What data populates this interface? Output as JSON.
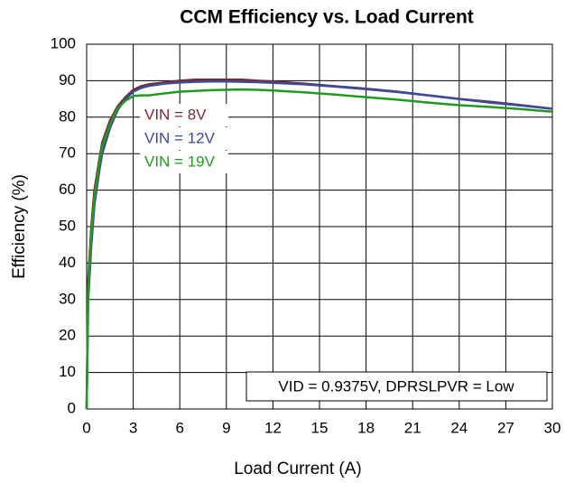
{
  "chart_data": {
    "type": "line",
    "title": "CCM Efficiency vs. Load Current",
    "xlabel": "Load Current  (A)",
    "ylabel": "Efficiency (%)",
    "annotation": "VID = 0.9375V, DPRSLPVR = Low",
    "x": [
      0,
      0.1,
      0.3,
      0.5,
      0.8,
      1,
      1.5,
      2,
      2.5,
      3,
      3.5,
      4,
      5,
      6,
      7,
      8,
      9,
      10,
      11,
      12,
      14,
      16,
      18,
      20,
      22,
      24,
      26,
      28,
      30
    ],
    "series": [
      {
        "name": "VIN = 8V",
        "color": "#7a2a2e",
        "values": [
          0,
          35,
          50,
          60,
          68,
          73,
          79,
          83,
          85.5,
          87.5,
          88.5,
          89,
          89.5,
          90,
          90.3,
          90.3,
          90.3,
          90.3,
          90,
          89.8,
          89.2,
          88.5,
          87.8,
          87,
          86,
          85,
          84.2,
          83.3,
          82.3
        ]
      },
      {
        "name": "VIN = 12V",
        "color": "#3c4a9c",
        "values": [
          0,
          30,
          45,
          56,
          65,
          70,
          77,
          82,
          85,
          87,
          88,
          88.6,
          89.2,
          89.5,
          89.7,
          89.8,
          89.8,
          89.7,
          89.6,
          89.4,
          89,
          88.4,
          87.7,
          86.9,
          86,
          85,
          84,
          83.2,
          82.3
        ]
      },
      {
        "name": "VIN = 19V",
        "color": "#229a22",
        "values": [
          0,
          33,
          48,
          58,
          67,
          72,
          78,
          82.5,
          84.5,
          85.8,
          86,
          86,
          86.5,
          87,
          87.2,
          87.4,
          87.5,
          87.6,
          87.5,
          87.3,
          86.8,
          86.2,
          85.5,
          84.8,
          84,
          83.3,
          82.8,
          82.2,
          81.5
        ]
      }
    ],
    "xlim": [
      0,
      30
    ],
    "xticks": [
      0,
      3,
      6,
      9,
      12,
      15,
      18,
      21,
      24,
      27,
      30
    ],
    "ylim": [
      0,
      100
    ],
    "yticks": [
      0,
      10,
      20,
      30,
      40,
      50,
      60,
      70,
      80,
      90,
      100
    ],
    "grid": true
  }
}
